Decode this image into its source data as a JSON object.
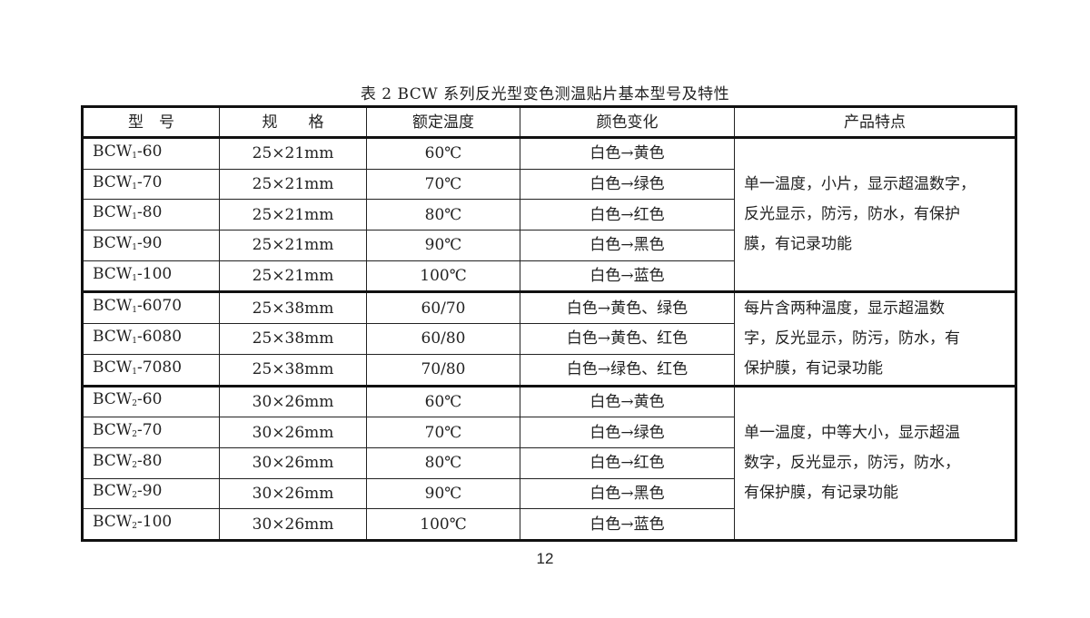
{
  "title": "表 2   BCW 系列反光型变色测温贴片基本型号及特性",
  "table": {
    "headers": [
      "型　号",
      "规　　格",
      "额定温度",
      "颜色变化",
      "产品特点"
    ],
    "groups": [
      {
        "features": [
          "单一温度，小片，显示超温数字，",
          "反光显示，防污，防水，有保护",
          "膜，有记录功能"
        ],
        "rows": [
          {
            "model_prefix": "BCW",
            "model_sub": "1",
            "model_suffix": "-60",
            "size": "25×21mm",
            "temp": "60℃",
            "color": "白色→黄色"
          },
          {
            "model_prefix": "BCW",
            "model_sub": "1",
            "model_suffix": "-70",
            "size": "25×21mm",
            "temp": "70℃",
            "color": "白色→绿色"
          },
          {
            "model_prefix": "BCW",
            "model_sub": "1",
            "model_suffix": "-80",
            "size": "25×21mm",
            "temp": "80℃",
            "color": "白色→红色"
          },
          {
            "model_prefix": "BCW",
            "model_sub": "1",
            "model_suffix": "-90",
            "size": "25×21mm",
            "temp": "90℃",
            "color": "白色→黑色"
          },
          {
            "model_prefix": "BCW",
            "model_sub": "1",
            "model_suffix": "-100",
            "size": "25×21mm",
            "temp": "100℃",
            "color": "白色→蓝色"
          }
        ]
      },
      {
        "features": [
          "每片含两种温度，显示超温数",
          "字，反光显示，防污，防水，有",
          "保护膜，有记录功能"
        ],
        "rows": [
          {
            "model_prefix": "BCW",
            "model_sub": "1",
            "model_suffix": "-6070",
            "size": "25×38mm",
            "temp": "60/70",
            "color": "白色→黄色、绿色"
          },
          {
            "model_prefix": "BCW",
            "model_sub": "1",
            "model_suffix": "-6080",
            "size": "25×38mm",
            "temp": "60/80",
            "color": "白色→黄色、红色"
          },
          {
            "model_prefix": "BCW",
            "model_sub": "1",
            "model_suffix": "-7080",
            "size": "25×38mm",
            "temp": "70/80",
            "color": "白色→绿色、红色"
          }
        ]
      },
      {
        "features": [
          "单一温度，中等大小，显示超温",
          "数字，反光显示，防污，防水，",
          "有保护膜，有记录功能"
        ],
        "rows": [
          {
            "model_prefix": "BCW",
            "model_sub": "2",
            "model_suffix": "-60",
            "size": "30×26mm",
            "temp": "60℃",
            "color": "白色→黄色"
          },
          {
            "model_prefix": "BCW",
            "model_sub": "2",
            "model_suffix": "-70",
            "size": "30×26mm",
            "temp": "70℃",
            "color": "白色→绿色"
          },
          {
            "model_prefix": "BCW",
            "model_sub": "2",
            "model_suffix": "-80",
            "size": "30×26mm",
            "temp": "80℃",
            "color": "白色→红色"
          },
          {
            "model_prefix": "BCW",
            "model_sub": "2",
            "model_suffix": "-90",
            "size": "30×26mm",
            "temp": "90℃",
            "color": "白色→黑色"
          },
          {
            "model_prefix": "BCW",
            "model_sub": "2",
            "model_suffix": "-100",
            "size": "30×26mm",
            "temp": "100℃",
            "color": "白色→蓝色"
          }
        ]
      }
    ]
  },
  "page_number": "12"
}
